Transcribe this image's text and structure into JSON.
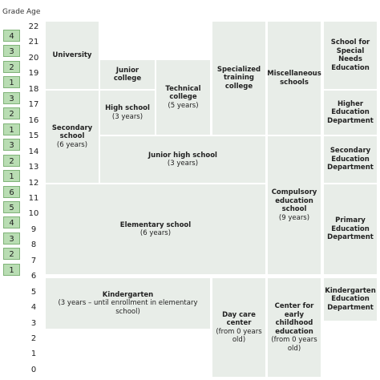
{
  "header": {
    "grade": "Grade",
    "age": "Age"
  },
  "grades": [
    "4",
    "3",
    "2",
    "1",
    "3",
    "2",
    "1",
    "3",
    "2",
    "1",
    "6",
    "5",
    "4",
    "3",
    "2",
    "1"
  ],
  "ages": [
    22,
    21,
    20,
    19,
    18,
    17,
    16,
    15,
    14,
    13,
    12,
    11,
    10,
    9,
    8,
    7,
    6,
    5,
    4,
    3,
    2,
    1,
    0
  ],
  "boxes": [
    {
      "title": "University"
    },
    {
      "title": "Junior college"
    },
    {
      "title": "Technical college",
      "subtitle": "(5 years)"
    },
    {
      "title": "High school",
      "subtitle": "(3 years)"
    },
    {
      "title": "Secondary school",
      "subtitle": "(6 years)"
    },
    {
      "title": "Specialized training college"
    },
    {
      "title": "Miscellaneous schools"
    },
    {
      "title": "Junior high school",
      "subtitle": "(3 years)"
    },
    {
      "title": "Compulsory education school",
      "subtitle": "(9 years)"
    },
    {
      "title": "Elementary school",
      "subtitle": "(6 years)"
    },
    {
      "title": "School for Special Needs Education"
    },
    {
      "title": "Higher Education Department"
    },
    {
      "title": "Secondary Education Department"
    },
    {
      "title": "Primary Education Department"
    },
    {
      "title": "Kindergarten",
      "subtitle": "(3 years – until enrollment in elementary school)"
    },
    {
      "title": "Day care center",
      "subtitle": "(from 0 years old)"
    },
    {
      "title": "Center for early childhood education",
      "subtitle": "(from 0 years old)"
    },
    {
      "title": "Kindergarten Education Department"
    }
  ]
}
